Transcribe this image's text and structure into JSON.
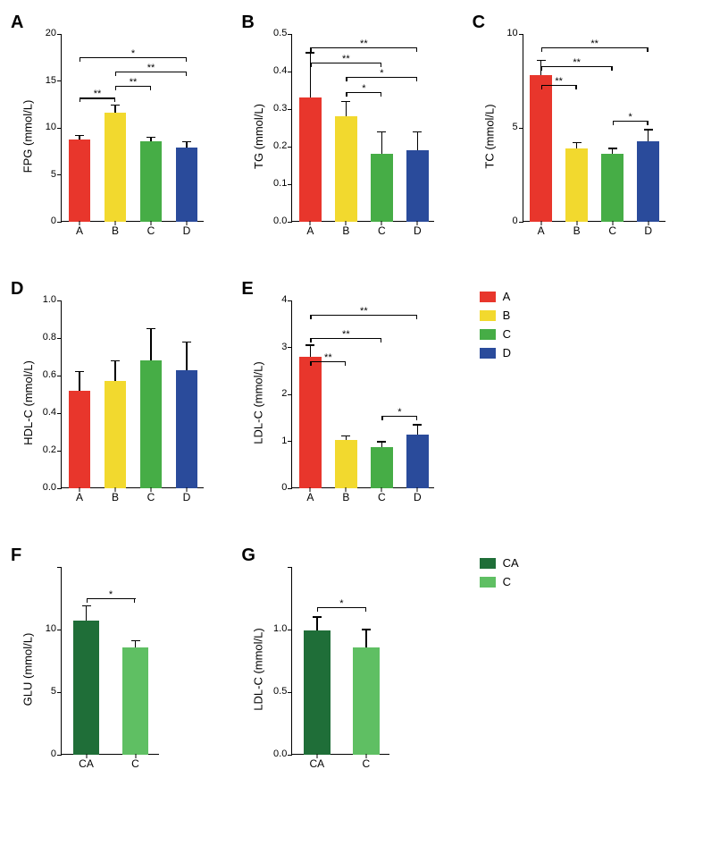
{
  "colors": {
    "A": "#e8362c",
    "B": "#f2d92e",
    "C": "#46ad46",
    "D": "#2a4b9b",
    "CA": "#1f6e38",
    "C2": "#5fbf63",
    "axis": "#000000",
    "bg": "#ffffff"
  },
  "fonts": {
    "letter_pt": 20,
    "axis_label_pt": 13,
    "tick_pt": 11
  },
  "legend1": {
    "items": [
      {
        "key": "A",
        "label": "A"
      },
      {
        "key": "B",
        "label": "B"
      },
      {
        "key": "C",
        "label": "C"
      },
      {
        "key": "D",
        "label": "D"
      }
    ]
  },
  "legend2": {
    "items": [
      {
        "key": "CA",
        "label": "CA"
      },
      {
        "key": "C2",
        "label": "C"
      }
    ]
  },
  "panels": {
    "A": {
      "letter": "A",
      "type": "bar",
      "ylabel": "FPG (mmol/L)",
      "ylim": [
        0,
        20
      ],
      "ytick_step": 5,
      "categories": [
        "A",
        "B",
        "C",
        "D"
      ],
      "values": [
        8.8,
        11.6,
        8.6,
        7.9
      ],
      "errors": [
        0.4,
        0.8,
        0.4,
        0.6
      ],
      "bar_color_keys": [
        "A",
        "B",
        "C",
        "D"
      ],
      "bar_width": 0.62,
      "sig": [
        {
          "from": 0,
          "to": 1,
          "label": "**",
          "y": 13.2
        },
        {
          "from": 1,
          "to": 2,
          "label": "**",
          "y": 14.5
        },
        {
          "from": 1,
          "to": 3,
          "label": "**",
          "y": 16.0
        },
        {
          "from": 0,
          "to": 3,
          "label": "*",
          "y": 17.5
        }
      ]
    },
    "B": {
      "letter": "B",
      "type": "bar",
      "ylabel": "TG (mmol/L)",
      "ylim": [
        0,
        0.5
      ],
      "ytick_step": 0.1,
      "categories": [
        "A",
        "B",
        "C",
        "D"
      ],
      "values": [
        0.33,
        0.28,
        0.18,
        0.19
      ],
      "errors": [
        0.12,
        0.04,
        0.06,
        0.05
      ],
      "bar_color_keys": [
        "A",
        "B",
        "C",
        "D"
      ],
      "bar_width": 0.62,
      "sig": [
        {
          "from": 1,
          "to": 2,
          "label": "*",
          "y": 0.345
        },
        {
          "from": 1,
          "to": 3,
          "label": "*",
          "y": 0.385
        },
        {
          "from": 0,
          "to": 2,
          "label": "**",
          "y": 0.425
        },
        {
          "from": 0,
          "to": 3,
          "label": "**",
          "y": 0.465
        }
      ]
    },
    "C": {
      "letter": "C",
      "type": "bar",
      "ylabel": "TC (mmol/L)",
      "ylim": [
        0,
        10
      ],
      "ytick_step": 5,
      "categories": [
        "A",
        "B",
        "C",
        "D"
      ],
      "values": [
        7.8,
        3.9,
        3.6,
        4.3
      ],
      "errors": [
        0.8,
        0.3,
        0.3,
        0.6
      ],
      "bar_color_keys": [
        "A",
        "B",
        "C",
        "D"
      ],
      "bar_width": 0.62,
      "sig": [
        {
          "from": 2,
          "to": 3,
          "label": "*",
          "y": 5.4
        },
        {
          "from": 0,
          "to": 1,
          "label": "**",
          "y": 7.3
        },
        {
          "from": 0,
          "to": 2,
          "label": "**",
          "y": 8.3
        },
        {
          "from": 0,
          "to": 3,
          "label": "**",
          "y": 9.3
        }
      ]
    },
    "D": {
      "letter": "D",
      "type": "bar",
      "ylabel": "HDL-C (mmol/L)",
      "ylim": [
        0,
        1.0
      ],
      "ytick_step": 0.2,
      "categories": [
        "A",
        "B",
        "C",
        "D"
      ],
      "values": [
        0.52,
        0.57,
        0.68,
        0.63
      ],
      "errors": [
        0.1,
        0.11,
        0.17,
        0.15
      ],
      "bar_color_keys": [
        "A",
        "B",
        "C",
        "D"
      ],
      "bar_width": 0.62,
      "sig": []
    },
    "E": {
      "letter": "E",
      "type": "bar",
      "ylabel": "LDL-C (mmol/L)",
      "ylim": [
        0,
        4
      ],
      "ytick_step": 1,
      "categories": [
        "A",
        "B",
        "C",
        "D"
      ],
      "values": [
        2.8,
        1.02,
        0.87,
        1.15
      ],
      "errors": [
        0.25,
        0.1,
        0.12,
        0.2
      ],
      "bar_color_keys": [
        "A",
        "B",
        "C",
        "D"
      ],
      "bar_width": 0.62,
      "sig": [
        {
          "from": 2,
          "to": 3,
          "label": "*",
          "y": 1.55
        },
        {
          "from": 0,
          "to": 1,
          "label": "**",
          "y": 2.7
        },
        {
          "from": 0,
          "to": 2,
          "label": "**",
          "y": 3.2
        },
        {
          "from": 0,
          "to": 3,
          "label": "**",
          "y": 3.7
        }
      ]
    },
    "F": {
      "letter": "F",
      "type": "bar",
      "ylabel": "GLU (mmol/L)",
      "ylim": [
        0,
        15
      ],
      "ytick_step": 5,
      "hide_max_tick": true,
      "categories": [
        "CA",
        "C"
      ],
      "values": [
        10.7,
        8.6
      ],
      "errors": [
        1.2,
        0.5
      ],
      "bar_color_keys": [
        "CA",
        "C2"
      ],
      "bar_width": 0.54,
      "sig": [
        {
          "from": 0,
          "to": 1,
          "label": "*",
          "y": 12.5
        }
      ]
    },
    "G": {
      "letter": "G",
      "type": "bar",
      "ylabel": "LDL-C (mmol/L)",
      "ylim": [
        0,
        1.5
      ],
      "ytick_step": 0.5,
      "hide_max_tick": true,
      "categories": [
        "CA",
        "C"
      ],
      "values": [
        0.99,
        0.86
      ],
      "errors": [
        0.11,
        0.14
      ],
      "bar_color_keys": [
        "CA",
        "C2"
      ],
      "bar_width": 0.54,
      "sig": [
        {
          "from": 0,
          "to": 1,
          "label": "*",
          "y": 1.18
        }
      ]
    }
  }
}
